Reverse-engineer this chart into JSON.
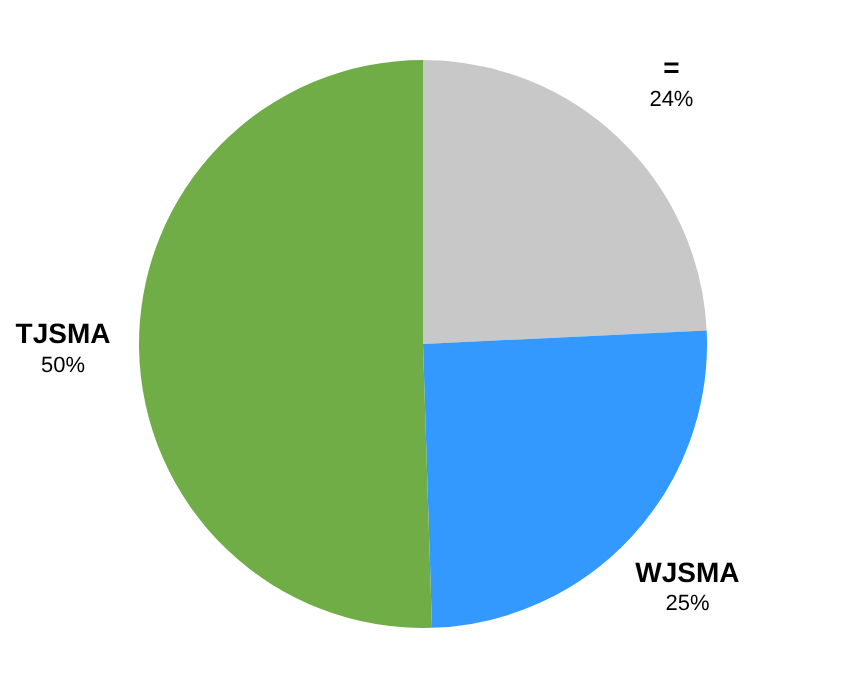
{
  "chart_data": {
    "type": "pie",
    "categories": [
      "=",
      "WJSMA",
      "TJSMA"
    ],
    "values": [
      24,
      25,
      50
    ],
    "colors": [
      "#c8c8c8",
      "#3399ff",
      "#70ad47"
    ],
    "value_labels": [
      "24%",
      "25%",
      "50%"
    ],
    "legend": false
  }
}
